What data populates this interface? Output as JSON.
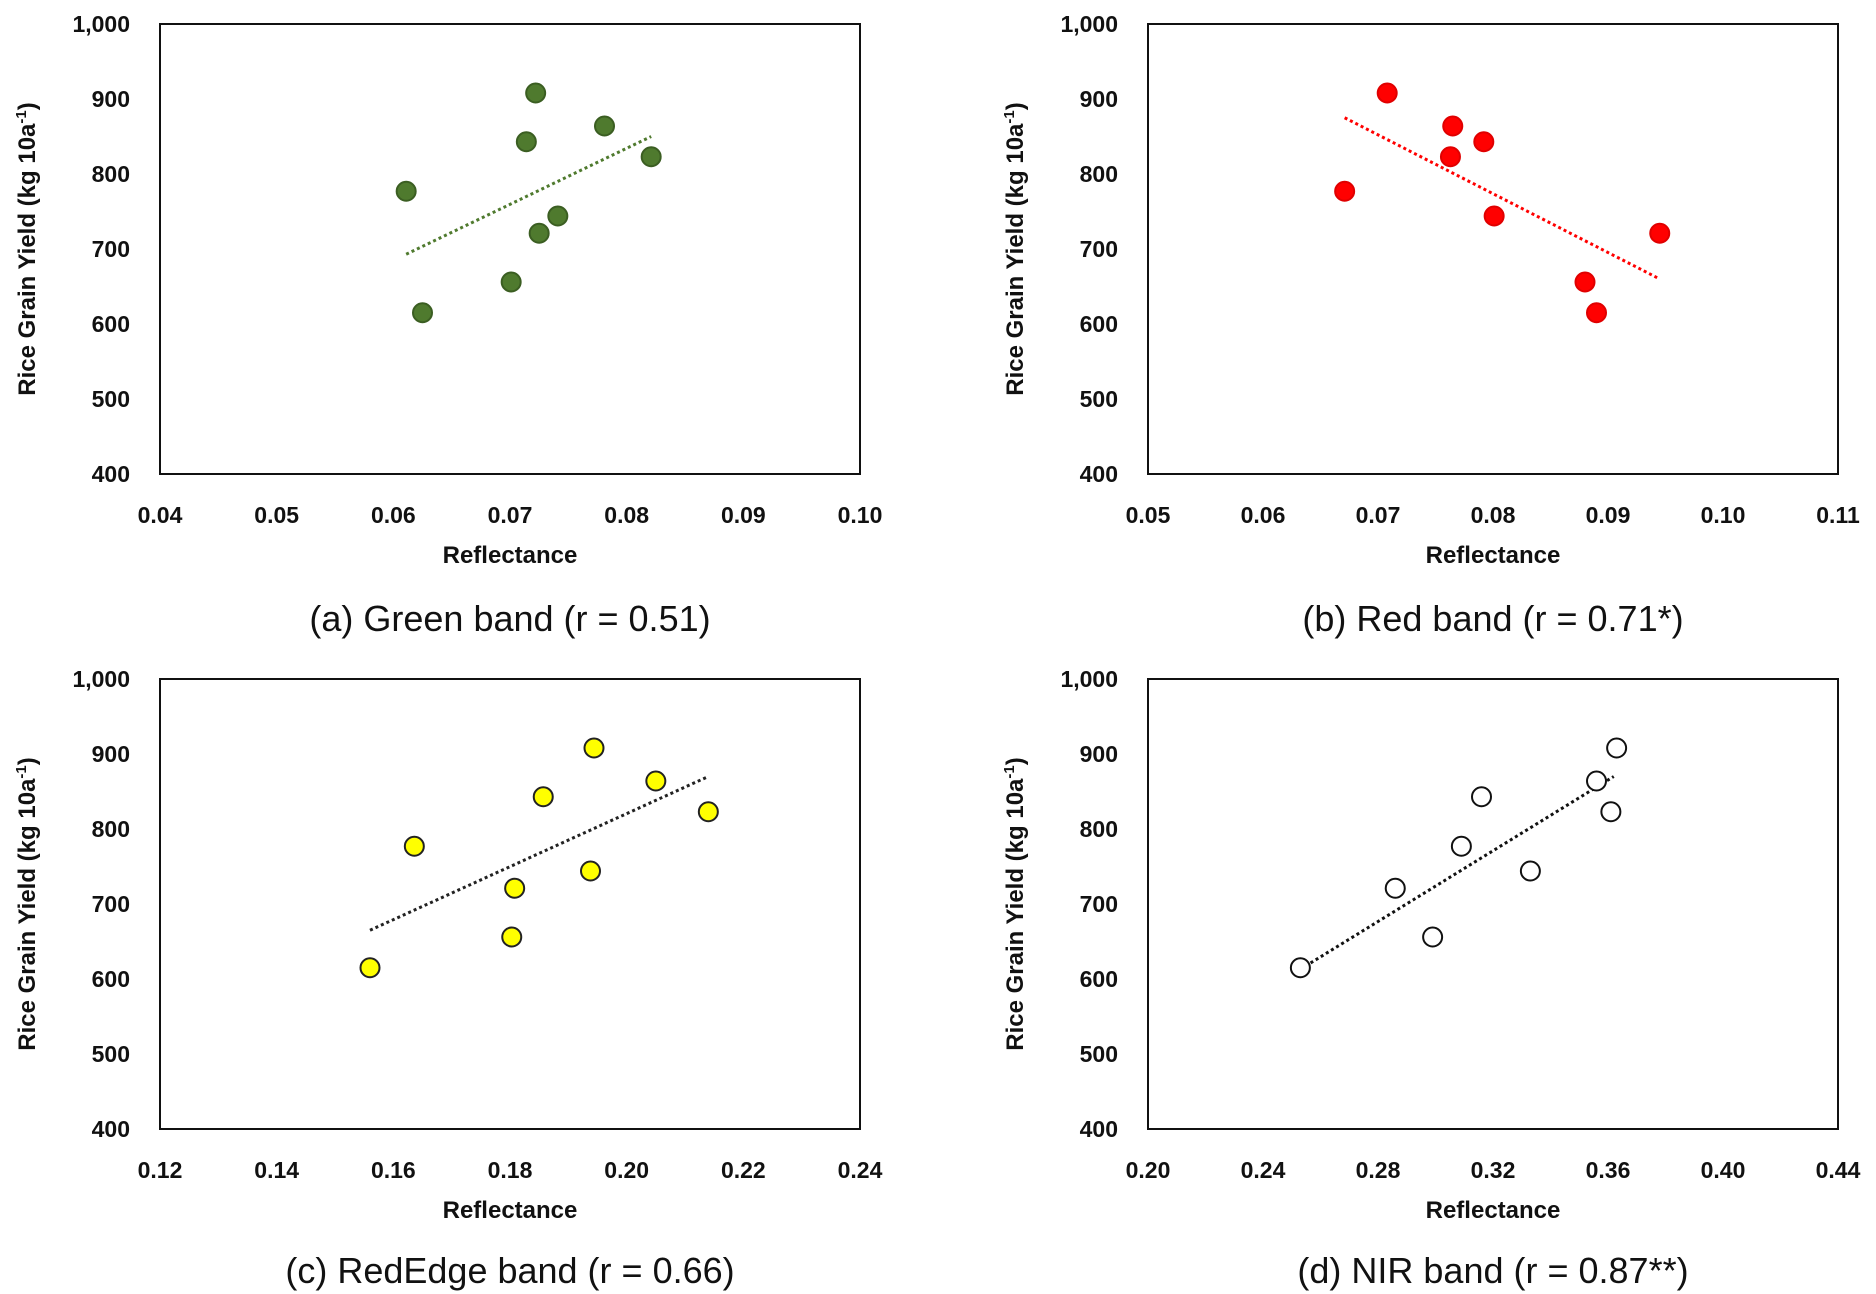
{
  "chart_data": [
    {
      "type": "scatter",
      "caption": "(a) Green band (r = 0.51)",
      "xlabel": "Reflectance",
      "ylabel": "Rice Grain Yield (kg 10a",
      "ylabel_sup": "-1",
      "ylabel_end": ")",
      "xlim": [
        0.04,
        0.1
      ],
      "ylim": [
        400,
        1000
      ],
      "xticks": [
        "0.04",
        "0.05",
        "0.06",
        "0.07",
        "0.08",
        "0.09",
        "0.10"
      ],
      "yticks": [
        "400",
        "500",
        "600",
        "700",
        "800",
        "900",
        "1,000"
      ],
      "marker": {
        "fill": "#4f7a2e",
        "stroke": "#3b5e22"
      },
      "trend": {
        "color": "#4f7a2e",
        "x": [
          0.0611,
          0.0821
        ],
        "y": [
          693,
          850
        ]
      },
      "points": [
        {
          "x": 0.0611,
          "y": 777
        },
        {
          "x": 0.0625,
          "y": 615
        },
        {
          "x": 0.0701,
          "y": 656
        },
        {
          "x": 0.0714,
          "y": 843
        },
        {
          "x": 0.0722,
          "y": 908
        },
        {
          "x": 0.0725,
          "y": 721
        },
        {
          "x": 0.0741,
          "y": 744
        },
        {
          "x": 0.0781,
          "y": 864
        },
        {
          "x": 0.0821,
          "y": 823
        }
      ]
    },
    {
      "type": "scatter",
      "caption": "(b) Red band (r = 0.71*)",
      "xlabel": "Reflectance",
      "ylabel": "Rice Grain Yield (kg 10a",
      "ylabel_sup": "-1",
      "ylabel_end": ")",
      "xlim": [
        0.05,
        0.11
      ],
      "ylim": [
        400,
        1000
      ],
      "xticks": [
        "0.05",
        "0.06",
        "0.07",
        "0.08",
        "0.09",
        "0.10",
        "0.11"
      ],
      "yticks": [
        "400",
        "500",
        "600",
        "700",
        "800",
        "900",
        "1,000"
      ],
      "marker": {
        "fill": "#ff0000",
        "stroke": "#e00000"
      },
      "trend": {
        "color": "#ff0000",
        "x": [
          0.0671,
          0.0945
        ],
        "y": [
          875,
          660
        ]
      },
      "points": [
        {
          "x": 0.0671,
          "y": 777
        },
        {
          "x": 0.0708,
          "y": 908
        },
        {
          "x": 0.0763,
          "y": 823
        },
        {
          "x": 0.0765,
          "y": 864
        },
        {
          "x": 0.0792,
          "y": 843
        },
        {
          "x": 0.0801,
          "y": 744
        },
        {
          "x": 0.088,
          "y": 656
        },
        {
          "x": 0.089,
          "y": 615
        },
        {
          "x": 0.0945,
          "y": 721
        }
      ]
    },
    {
      "type": "scatter",
      "caption": "(c) RedEdge band (r = 0.66)",
      "xlabel": "Reflectance",
      "ylabel": "Rice Grain Yield (kg 10a",
      "ylabel_sup": "-1",
      "ylabel_end": ")",
      "xlim": [
        0.12,
        0.24
      ],
      "ylim": [
        400,
        1000
      ],
      "xticks": [
        "0.12",
        "0.14",
        "0.16",
        "0.18",
        "0.20",
        "0.22",
        "0.24"
      ],
      "yticks": [
        "400",
        "500",
        "600",
        "700",
        "800",
        "900",
        "1,000"
      ],
      "marker": {
        "fill": "#ffff00",
        "stroke": "#222222"
      },
      "trend": {
        "color": "#222222",
        "x": [
          0.156,
          0.214
        ],
        "y": [
          665,
          870
        ]
      },
      "points": [
        {
          "x": 0.156,
          "y": 615
        },
        {
          "x": 0.1636,
          "y": 777
        },
        {
          "x": 0.1803,
          "y": 656
        },
        {
          "x": 0.1808,
          "y": 721
        },
        {
          "x": 0.1857,
          "y": 843
        },
        {
          "x": 0.1938,
          "y": 744
        },
        {
          "x": 0.1944,
          "y": 908
        },
        {
          "x": 0.205,
          "y": 864
        },
        {
          "x": 0.214,
          "y": 823
        }
      ]
    },
    {
      "type": "scatter",
      "caption": "(d) NIR band (r = 0.87**)",
      "xlabel": "Reflectance",
      "ylabel": "Rice Grain Yield (kg 10a",
      "ylabel_sup": "-1",
      "ylabel_end": ")",
      "xlim": [
        0.2,
        0.44
      ],
      "ylim": [
        400,
        1000
      ],
      "xticks": [
        "0.20",
        "0.24",
        "0.28",
        "0.32",
        "0.36",
        "0.40",
        "0.44"
      ],
      "yticks": [
        "400",
        "500",
        "600",
        "700",
        "800",
        "900",
        "1,000"
      ],
      "marker": {
        "fill": "#ffffff",
        "stroke": "#111111"
      },
      "trend": {
        "color": "#111111",
        "x": [
          0.253,
          0.362
        ],
        "y": [
          613,
          870
        ]
      },
      "points": [
        {
          "x": 0.253,
          "y": 615
        },
        {
          "x": 0.286,
          "y": 721
        },
        {
          "x": 0.299,
          "y": 656
        },
        {
          "x": 0.309,
          "y": 777
        },
        {
          "x": 0.316,
          "y": 843
        },
        {
          "x": 0.333,
          "y": 744
        },
        {
          "x": 0.356,
          "y": 864
        },
        {
          "x": 0.361,
          "y": 823
        },
        {
          "x": 0.363,
          "y": 908
        }
      ]
    }
  ]
}
